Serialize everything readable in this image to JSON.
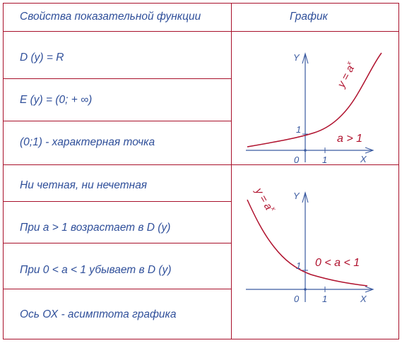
{
  "header": {
    "col1": "Свойства показательной функции",
    "col2": "График"
  },
  "rows": [
    "D (y) = R",
    "E (y) = (0; + ∞)",
    "(0;1) - характерная точка",
    "Ни четная, ни нечетная",
    "При a > 1 возрастает в D (y)",
    "При 0 < a < 1 убывает в D (y)",
    "Ось ОХ - асимптота графика"
  ],
  "graph_top": {
    "y_axis": "Y",
    "x_axis": "X",
    "origin": "0",
    "x_tick": "1",
    "y_tick": "1",
    "curve_label": "y = a",
    "curve_label_exp": "x",
    "condition": "a > 1"
  },
  "graph_bottom": {
    "y_axis": "Y",
    "x_axis": "X",
    "origin": "0",
    "x_tick": "1",
    "y_tick": "1",
    "curve_label": "y = a",
    "curve_label_exp": "x",
    "condition": "0 < a < 1"
  },
  "colors": {
    "border": "#a8102a",
    "text": "#2f4f9a",
    "curve": "#b0122e",
    "axis": "#3a5aa0"
  }
}
